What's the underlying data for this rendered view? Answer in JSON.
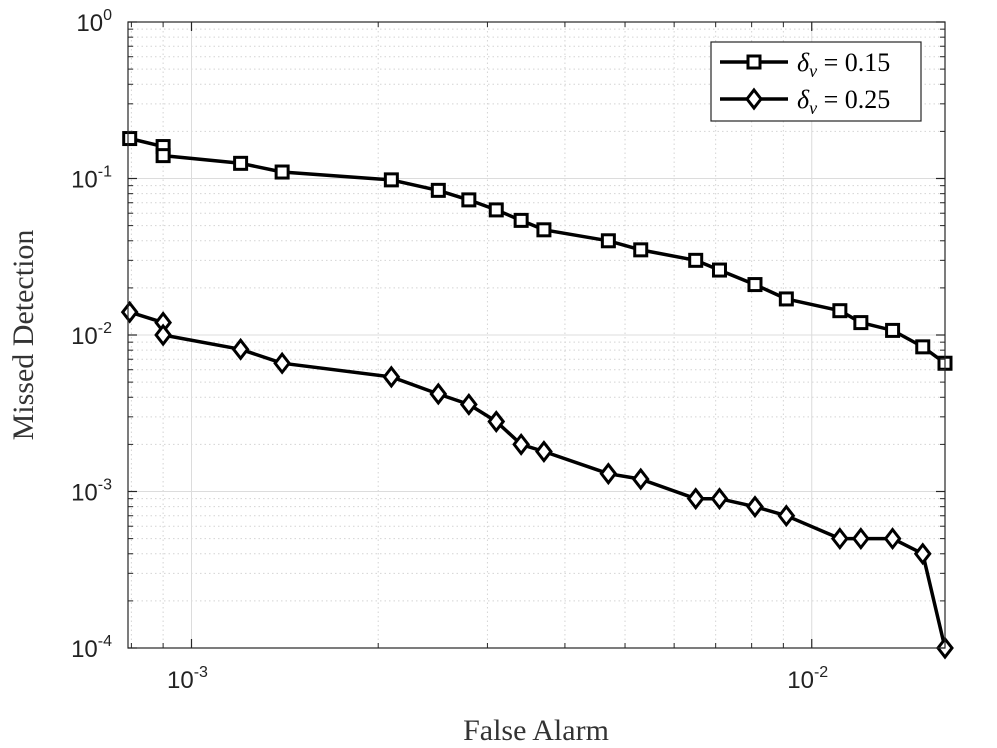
{
  "chart_data": {
    "type": "line",
    "xlabel": "False Alarm",
    "ylabel": "Missed Detection",
    "x_scale": "log",
    "y_scale": "log",
    "xlim": [
      0.00079,
      0.0164
    ],
    "ylim": [
      0.0001,
      1
    ],
    "grid": true,
    "legend_position": "top-right",
    "x_ticks": [
      {
        "value": 0.001,
        "base": "10",
        "exp": "-3"
      },
      {
        "value": 0.01,
        "base": "10",
        "exp": "-2"
      }
    ],
    "y_ticks": [
      {
        "value": 1,
        "base": "10",
        "exp": "0"
      },
      {
        "value": 0.1,
        "base": "10",
        "exp": "-1"
      },
      {
        "value": 0.01,
        "base": "10",
        "exp": "-2"
      },
      {
        "value": 0.001,
        "base": "10",
        "exp": "-3"
      },
      {
        "value": 0.0001,
        "base": "10",
        "exp": "-4"
      }
    ],
    "series": [
      {
        "name": "δ_v = 0.15",
        "legend_symbol": "δ",
        "legend_sub": "v",
        "legend_rest": " = 0.15",
        "marker": "square",
        "x": [
          0.000795,
          0.0009,
          0.0009,
          0.0012,
          0.0014,
          0.0021,
          0.0025,
          0.0028,
          0.0031,
          0.0034,
          0.0037,
          0.0047,
          0.0053,
          0.0065,
          0.0071,
          0.0081,
          0.0091,
          0.0111,
          0.012,
          0.0135,
          0.0151,
          0.0164
        ],
        "y": [
          0.18,
          0.16,
          0.14,
          0.125,
          0.11,
          0.098,
          0.084,
          0.073,
          0.063,
          0.054,
          0.047,
          0.04,
          0.035,
          0.03,
          0.026,
          0.021,
          0.017,
          0.0143,
          0.012,
          0.0107,
          0.0084,
          0.0066
        ]
      },
      {
        "name": "δ_v = 0.25",
        "legend_symbol": "δ",
        "legend_sub": "v",
        "legend_rest": " = 0.25",
        "marker": "diamond",
        "x": [
          0.000795,
          0.0009,
          0.0009,
          0.0012,
          0.0014,
          0.0021,
          0.0025,
          0.0028,
          0.0031,
          0.0034,
          0.0037,
          0.0047,
          0.0053,
          0.0065,
          0.0071,
          0.0081,
          0.0091,
          0.0111,
          0.012,
          0.0135,
          0.0151,
          0.0164
        ],
        "y": [
          0.014,
          0.012,
          0.01,
          0.0081,
          0.0066,
          0.0054,
          0.0042,
          0.0036,
          0.0028,
          0.002,
          0.0018,
          0.0013,
          0.0012,
          0.0009,
          0.0009,
          0.0008,
          0.0007,
          0.0005,
          0.0005,
          0.0005,
          0.0004,
          0.0001
        ]
      }
    ]
  }
}
